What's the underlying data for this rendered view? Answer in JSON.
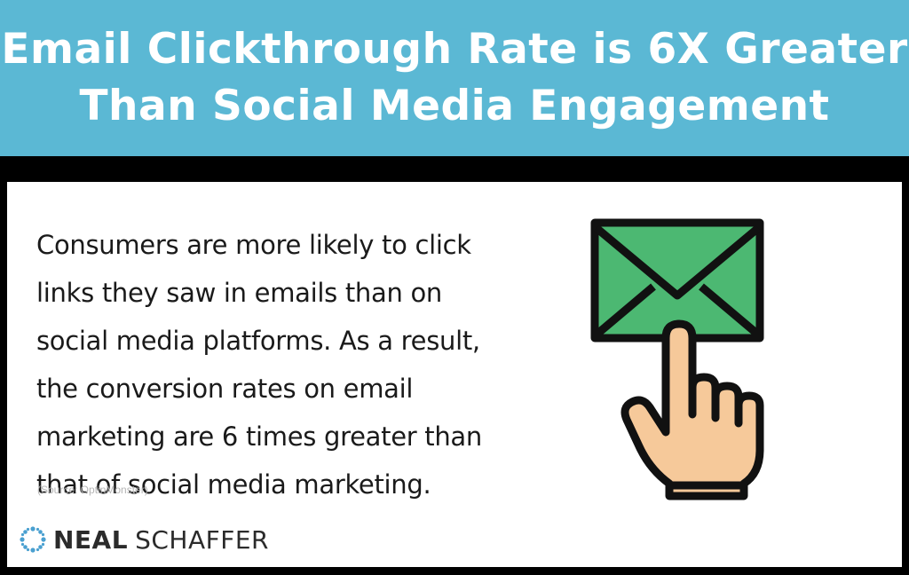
{
  "header": {
    "title_line1": "Email Clickthrough Rate is 6X Greater",
    "title_line2": "Than Social Media Engagement",
    "background_color": "#5bb8d4"
  },
  "body": {
    "lines": [
      "Consumers are more likely to click",
      "links they saw in emails than on",
      "social media platforms. As a result,",
      "the conversion rates on email",
      "marketing are 6 times greater than",
      "that of social media marketing."
    ],
    "source": "(Source: OptinMonster)"
  },
  "logo": {
    "first": "NEAL",
    "last": "SCHAFFER",
    "mark_icon": "neal-schaffer-logo-mark",
    "mark_color": "#4aa0d0"
  },
  "illustration": {
    "envelope_icon": "envelope-icon",
    "hand_icon": "pointing-hand-icon",
    "envelope_color": "#4cb872",
    "skin_color": "#f6c99a"
  }
}
